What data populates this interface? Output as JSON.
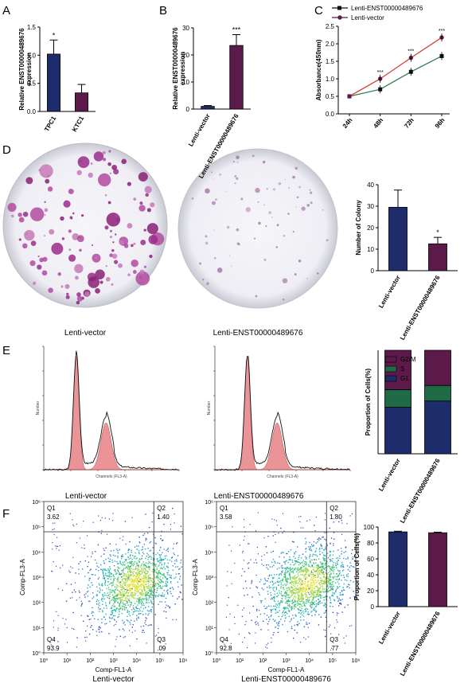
{
  "colors": {
    "navy": "#1f2c6b",
    "maroon": "#5b1a4a",
    "green_line": "#2e7d4f",
    "red_line": "#d2423a",
    "s_phase": "#1e6b45",
    "flow_pink": "#e8898d"
  },
  "panels": {
    "a": "A",
    "b": "B",
    "c": "C",
    "d": "D",
    "e": "E",
    "f": "F"
  },
  "chart_data": [
    {
      "id": "A",
      "type": "bar",
      "categories": [
        "TPC1",
        "KTC1"
      ],
      "values": [
        1.02,
        0.33
      ],
      "errors": [
        0.25,
        0.15
      ],
      "significance": [
        "*",
        ""
      ],
      "ylabel": "Relative ENST00000489676 expression",
      "ylim": [
        0,
        1.5
      ],
      "yticks": [
        "0.0",
        "0.5",
        "1.0",
        "1.5"
      ]
    },
    {
      "id": "B",
      "type": "bar",
      "categories": [
        "Lenti-vector",
        "Lenti-ENST00000489676"
      ],
      "values": [
        1.0,
        23.5
      ],
      "errors": [
        0.3,
        4.0
      ],
      "significance": [
        "",
        "***"
      ],
      "ylabel": "Relative ENST00000489676 expression",
      "ylim": [
        0,
        30
      ],
      "yticks": [
        "0",
        "10",
        "20",
        "30"
      ]
    },
    {
      "id": "C",
      "type": "line",
      "x": [
        "24h",
        "48h",
        "72h",
        "96h"
      ],
      "series": [
        {
          "name": "Lenti-ENST00000489676",
          "values": [
            0.5,
            0.7,
            1.2,
            1.65
          ]
        },
        {
          "name": "Lenti-vector",
          "values": [
            0.5,
            1.0,
            1.6,
            2.18
          ]
        }
      ],
      "significance": [
        "",
        "***",
        "***",
        "***"
      ],
      "ylabel": "Absorbance(450nm)",
      "ylim": [
        0,
        2.5
      ],
      "yticks": [
        "0.0",
        "0.5",
        "1.0",
        "1.5",
        "2.0",
        "2.5"
      ]
    },
    {
      "id": "D",
      "type": "bar",
      "categories": [
        "Lenti-vector",
        "Lenti-ENST00000489676"
      ],
      "values": [
        29.5,
        12.5
      ],
      "errors": [
        8,
        3
      ],
      "significance": [
        "",
        "*"
      ],
      "ylabel": "Number of Colony",
      "ylim": [
        0,
        40
      ],
      "yticks": [
        "0",
        "10",
        "20",
        "30",
        "40"
      ]
    },
    {
      "id": "E",
      "type": "bar",
      "stacked": true,
      "categories": [
        "Lenti-vector",
        "Lenti-ENST00000489676"
      ],
      "series": [
        {
          "name": "G1",
          "values": [
            45,
            51
          ]
        },
        {
          "name": "S",
          "values": [
            17,
            15
          ]
        },
        {
          "name": "G2/M",
          "values": [
            38,
            34
          ]
        }
      ],
      "ylabel": "Proportion of Cells(%)",
      "ylim": [
        0,
        100
      ],
      "legend": "top-right"
    },
    {
      "id": "F",
      "type": "bar",
      "categories": [
        "Lenti-vector",
        "Lenti-ENST00000489676"
      ],
      "values": [
        93.9,
        92.8
      ],
      "errors": [
        0.8,
        0.8
      ],
      "ylabel": "Proportion of Cells(%)",
      "ylim": [
        0,
        100
      ],
      "yticks": [
        "0",
        "20",
        "40",
        "60",
        "80",
        "100"
      ]
    }
  ],
  "colony": {
    "labels": [
      "Lenti-vector",
      "Lenti-ENST00000489676"
    ]
  },
  "cell_cycle": {
    "labels": [
      "Lenti-vector",
      "Lenti-ENST00000489676"
    ],
    "xlabel": "Channels (FL3-A)",
    "ylabel": "Number"
  },
  "flow": {
    "xlabel": "Comp-FL1-A",
    "ylabel": "Comp-FL3-A",
    "plots": [
      {
        "label": "Lenti-vector",
        "q1": "Q1",
        "q1v": "3.62",
        "q2": "Q2",
        "q2v": "1.40",
        "q3": "Q3",
        "q3v": ".09",
        "q4": "Q4",
        "q4v": "93.9"
      },
      {
        "label": "Lenti-ENST00000489676",
        "q1": "Q1",
        "q1v": "3.58",
        "q2": "Q2",
        "q2v": "1.80",
        "q3": "Q3",
        "q3v": ".77",
        "q4": "Q4",
        "q4v": "92.8"
      }
    ],
    "xticks": [
      "10⁰",
      "10¹",
      "10²",
      "10³",
      "10⁴",
      "10⁵",
      "10⁶"
    ],
    "yticks": [
      "10⁰",
      "10¹",
      "10²",
      "10³",
      "10⁴",
      "10⁵",
      "10⁶"
    ]
  }
}
